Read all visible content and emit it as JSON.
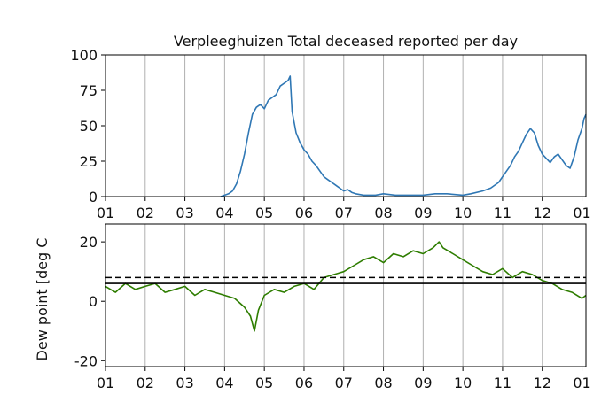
{
  "chart_data": [
    {
      "type": "line",
      "title": "Verpleeghuizen Total deceased reported per day",
      "xlabel": "",
      "ylabel": "",
      "x_tick_labels": [
        "01",
        "02",
        "03",
        "04",
        "05",
        "06",
        "07",
        "08",
        "09",
        "10",
        "11",
        "12",
        "01"
      ],
      "y_ticks": [
        0,
        25,
        50,
        75,
        100
      ],
      "xlim": [
        0,
        12.1
      ],
      "ylim": [
        0,
        100
      ],
      "grid": "x",
      "color": "#2f77b4",
      "series": [
        {
          "x": [
            2.9,
            3.0,
            3.1,
            3.2,
            3.3,
            3.4,
            3.5,
            3.6,
            3.7,
            3.8,
            3.9,
            4.0,
            4.1,
            4.2,
            4.3,
            4.4,
            4.5,
            4.6,
            4.65,
            4.7,
            4.8,
            4.9,
            5.0,
            5.1,
            5.2,
            5.3,
            5.4,
            5.5,
            5.6,
            5.7,
            5.8,
            5.9,
            6.0,
            6.1,
            6.2,
            6.3,
            6.5,
            6.8,
            7.0,
            7.3,
            7.6,
            8.0,
            8.3,
            8.6,
            9.0,
            9.2,
            9.5,
            9.7,
            9.9,
            10.0,
            10.1,
            10.2,
            10.3,
            10.4,
            10.5,
            10.6,
            10.7,
            10.8,
            10.9,
            11.0,
            11.1,
            11.2,
            11.3,
            11.4,
            11.5,
            11.6,
            11.7,
            11.8,
            11.9,
            12.0,
            12.05,
            12.1
          ],
          "values": [
            0,
            1,
            2,
            4,
            9,
            18,
            30,
            45,
            58,
            63,
            65,
            62,
            68,
            70,
            72,
            78,
            80,
            82,
            85,
            60,
            45,
            38,
            33,
            30,
            25,
            22,
            18,
            14,
            12,
            10,
            8,
            6,
            4,
            5,
            3,
            2,
            1,
            1,
            2,
            1,
            1,
            1,
            2,
            2,
            1,
            2,
            4,
            6,
            10,
            14,
            18,
            22,
            28,
            32,
            38,
            44,
            48,
            45,
            36,
            30,
            27,
            24,
            28,
            30,
            26,
            22,
            20,
            28,
            40,
            48,
            55,
            58
          ]
        }
      ]
    },
    {
      "type": "line",
      "title": "",
      "xlabel": "",
      "ylabel": "Dew point [deg C",
      "x_tick_labels": [
        "01",
        "02",
        "03",
        "04",
        "05",
        "06",
        "07",
        "08",
        "09",
        "10",
        "11",
        "12",
        "01"
      ],
      "y_ticks": [
        -20,
        0,
        20
      ],
      "xlim": [
        0,
        12.1
      ],
      "ylim": [
        -22,
        26
      ],
      "grid": "x",
      "color": "#2e7d00",
      "reference_lines": [
        {
          "style": "solid",
          "value": 6
        },
        {
          "style": "dashed",
          "value": 8
        }
      ],
      "series": [
        {
          "x": [
            0.0,
            0.25,
            0.5,
            0.75,
            1.0,
            1.25,
            1.5,
            1.75,
            2.0,
            2.25,
            2.5,
            2.75,
            3.0,
            3.25,
            3.5,
            3.65,
            3.75,
            3.85,
            4.0,
            4.25,
            4.5,
            4.75,
            5.0,
            5.25,
            5.5,
            5.75,
            6.0,
            6.25,
            6.5,
            6.75,
            7.0,
            7.25,
            7.5,
            7.75,
            8.0,
            8.25,
            8.4,
            8.5,
            8.75,
            9.0,
            9.25,
            9.5,
            9.75,
            10.0,
            10.25,
            10.5,
            10.75,
            11.0,
            11.25,
            11.5,
            11.75,
            12.0,
            12.1
          ],
          "values": [
            5,
            3,
            6,
            4,
            5,
            6,
            3,
            4,
            5,
            2,
            4,
            3,
            2,
            1,
            -2,
            -5,
            -10,
            -3,
            2,
            4,
            3,
            5,
            6,
            4,
            8,
            9,
            10,
            12,
            14,
            15,
            13,
            16,
            15,
            17,
            16,
            18,
            20,
            18,
            16,
            14,
            12,
            10,
            9,
            11,
            8,
            10,
            9,
            7,
            6,
            4,
            3,
            1,
            2
          ]
        }
      ]
    }
  ]
}
